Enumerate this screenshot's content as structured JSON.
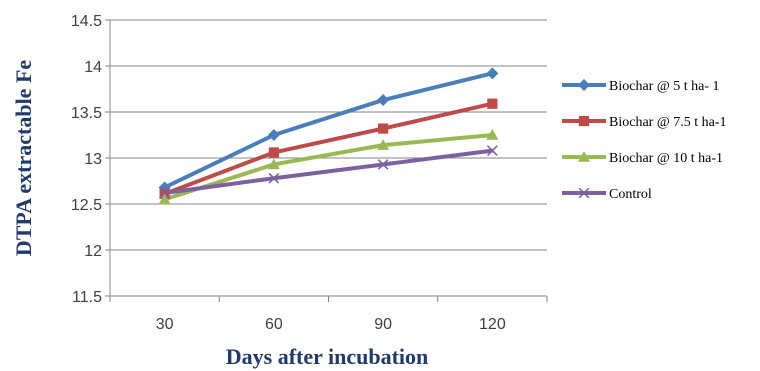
{
  "chart_data": {
    "type": "line",
    "xlabel": "Days after incubation",
    "ylabel": "DTPA extractable Fe",
    "categories": [
      "30",
      "60",
      "90",
      "120"
    ],
    "ylim": [
      11.5,
      14.5
    ],
    "yticks": [
      "11.5",
      "12",
      "12.5",
      "13",
      "13.5",
      "14",
      "14.5"
    ],
    "grid": "horizontal major gridlines",
    "legend": "right",
    "series": [
      {
        "name": "Biochar @ 5 t ha- 1",
        "values": [
          12.68,
          13.25,
          13.63,
          13.92
        ],
        "color": "#4a7ebb",
        "marker": "diamond"
      },
      {
        "name": "Biochar @ 7.5 t ha-1",
        "values": [
          12.61,
          13.06,
          13.32,
          13.59
        ],
        "color": "#be4b48",
        "marker": "square"
      },
      {
        "name": "Biochar @ 10 t ha-1",
        "values": [
          12.55,
          12.93,
          13.14,
          13.25
        ],
        "color": "#98b954",
        "marker": "triangle"
      },
      {
        "name": "Control",
        "values": [
          12.62,
          12.78,
          12.93,
          13.08
        ],
        "color": "#7d60a0",
        "marker": "x"
      }
    ]
  }
}
